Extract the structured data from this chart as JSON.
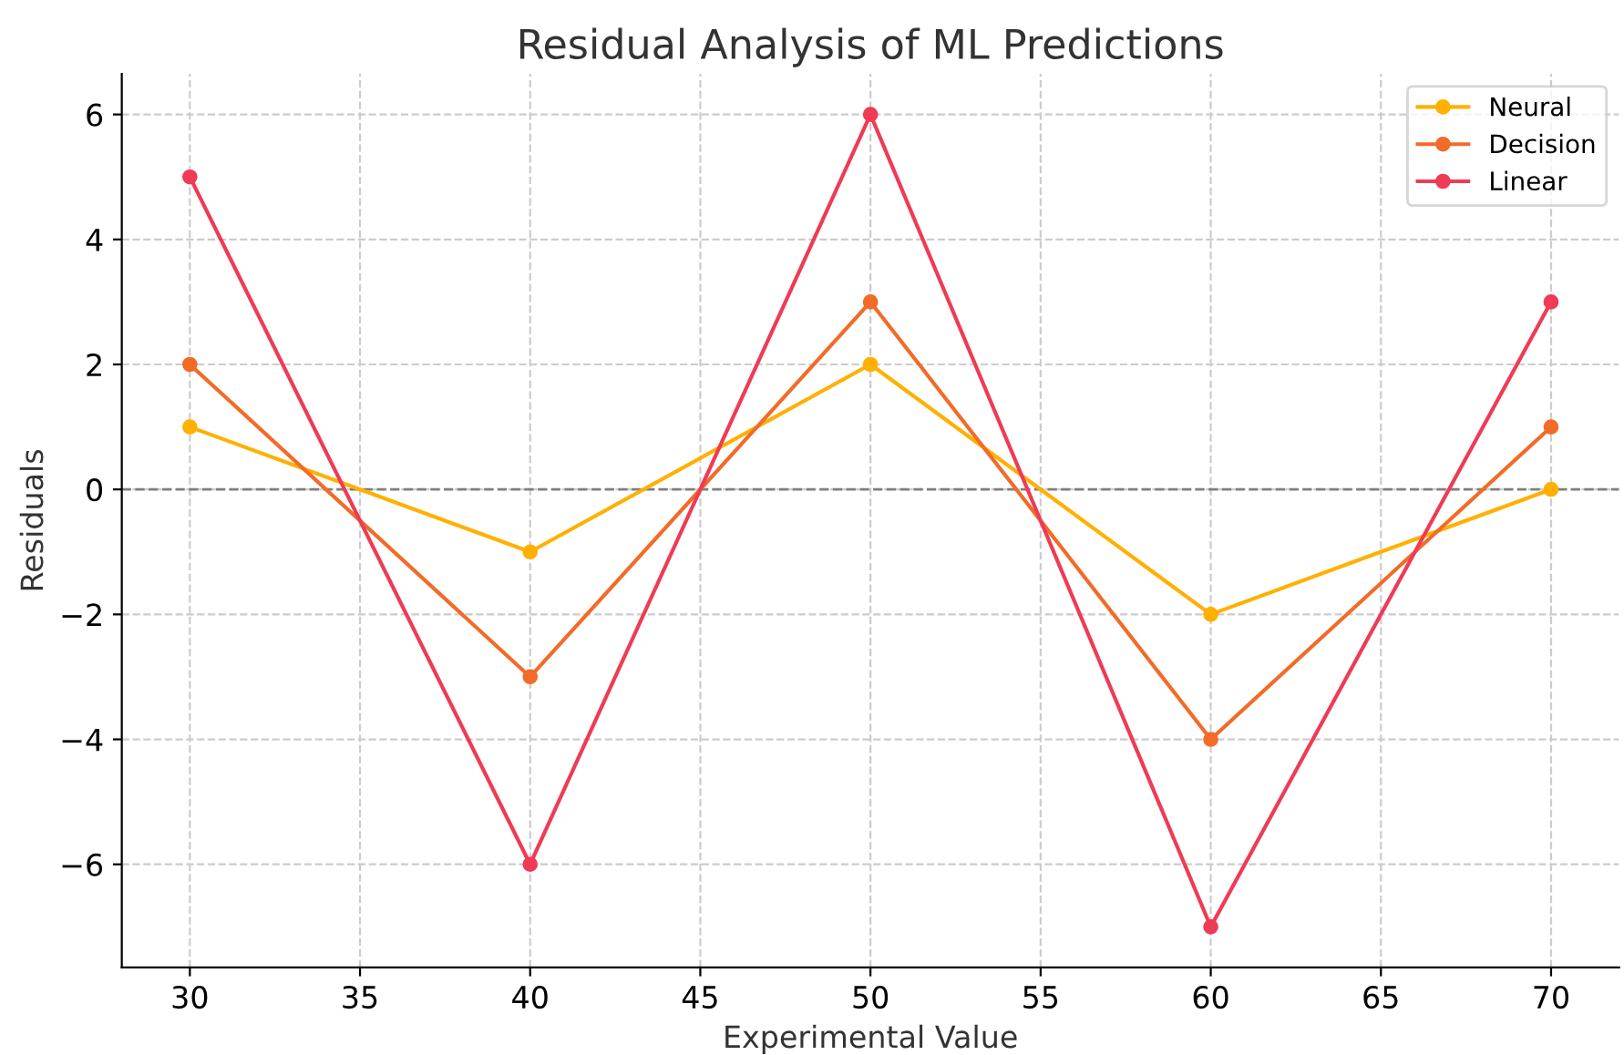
{
  "chart_data": {
    "type": "line",
    "title": "Residual Analysis of ML Predictions",
    "xlabel": "Experimental Value",
    "ylabel": "Residuals",
    "x": [
      30,
      40,
      50,
      60,
      70
    ],
    "series": [
      {
        "name": "Neural",
        "color": "#ffb000",
        "values": [
          1,
          -1,
          2,
          -2,
          0
        ]
      },
      {
        "name": "Decision",
        "color": "#f26b28",
        "values": [
          2,
          -3,
          3,
          -4,
          1
        ]
      },
      {
        "name": "Linear",
        "color": "#ef3b55",
        "values": [
          5,
          -6,
          6,
          -7,
          3
        ]
      }
    ],
    "xlim": [
      28,
      72
    ],
    "xticks": [
      30,
      35,
      40,
      45,
      50,
      55,
      60,
      65,
      70
    ],
    "ylim": [
      -7.65,
      6.65
    ],
    "yticks": [
      {
        "value": -6,
        "label": "−6"
      },
      {
        "value": -4,
        "label": "−4"
      },
      {
        "value": -2,
        "label": "−2"
      },
      0,
      2,
      4,
      6
    ],
    "ref_lines": [
      {
        "axis": "y",
        "value": 0,
        "color": "#808080",
        "line_style": "dashed"
      }
    ],
    "grid": true,
    "legend": "top right",
    "marker": "circle",
    "line_style": "solid"
  }
}
